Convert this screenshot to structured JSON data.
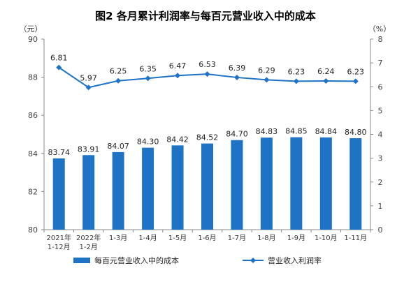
{
  "chart_data": {
    "type": "bar+line",
    "title": "图2  各月累计利润率与每百元营业收入中的成本",
    "left_unit": "（元）",
    "right_unit": "（%）",
    "categories": [
      [
        "2021年",
        "1-12月"
      ],
      [
        "2022年",
        "1-2月"
      ],
      [
        "1-3月"
      ],
      [
        "1-4月"
      ],
      [
        "1-5月"
      ],
      [
        "1-6月"
      ],
      [
        "1-7月"
      ],
      [
        "1-8月"
      ],
      [
        "1-9月"
      ],
      [
        "1-10月"
      ],
      [
        "1-11月"
      ]
    ],
    "bar_series": {
      "name": "每百元营业收入中的成本",
      "values": [
        83.74,
        83.91,
        84.07,
        84.3,
        84.42,
        84.52,
        84.7,
        84.83,
        84.85,
        84.84,
        84.8
      ],
      "labels": [
        "83.74",
        "83.91",
        "84.07",
        "84.30",
        "84.42",
        "84.52",
        "84.70",
        "84.83",
        "84.85",
        "84.84",
        "84.80"
      ]
    },
    "line_series": {
      "name": "营业收入利润率",
      "values": [
        6.81,
        5.97,
        6.25,
        6.35,
        6.47,
        6.53,
        6.39,
        6.29,
        6.23,
        6.24,
        6.23
      ],
      "labels": [
        "6.81",
        "5.97",
        "6.25",
        "6.35",
        "6.47",
        "6.53",
        "6.39",
        "6.29",
        "6.23",
        "6.24",
        "6.23"
      ]
    },
    "left_axis": {
      "min": 80,
      "max": 90,
      "ticks": [
        "80",
        "82",
        "84",
        "86",
        "88",
        "90"
      ]
    },
    "right_axis": {
      "min": 0,
      "max": 8,
      "ticks": [
        "0",
        "1",
        "2",
        "3",
        "4",
        "5",
        "6",
        "7",
        "8"
      ]
    },
    "colors": {
      "bar": "#1f73c4",
      "line": "#1f73c4"
    },
    "grid": false,
    "legend_position": "bottom"
  }
}
